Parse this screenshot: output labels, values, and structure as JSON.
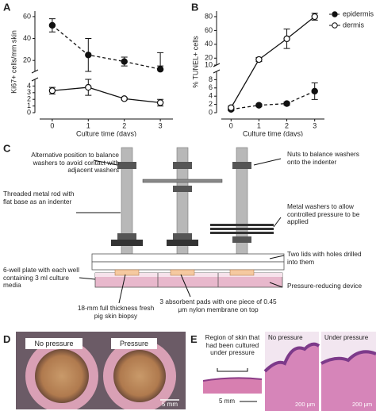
{
  "chart_data": [
    {
      "type": "line",
      "panel_label": "A",
      "x": [
        0,
        1,
        2,
        3
      ],
      "xlim": [
        -0.35,
        3.35
      ],
      "xticks": [
        0,
        1,
        2,
        3
      ],
      "xlabel": "Culture time (days)",
      "ylabel": "Ki67+ cells/mm skin",
      "y_segments": [
        {
          "ylim": [
            0,
            5
          ],
          "yticks": [
            0,
            1,
            2,
            3,
            4
          ]
        },
        {
          "ylim": [
            10,
            65
          ],
          "yticks": [
            20,
            40,
            60
          ]
        }
      ],
      "series": [
        {
          "color": "#111111",
          "marker": "filled",
          "dash": true,
          "values": [
            52,
            25,
            19,
            12
          ],
          "errors": [
            6,
            15,
            4,
            3
          ]
        },
        {
          "color": "#111111",
          "marker": "open",
          "dash": false,
          "values": [
            3.3,
            3.8,
            2.1,
            1.5
          ],
          "errors": [
            0.5,
            1.2,
            0.2,
            0.5
          ]
        }
      ]
    },
    {
      "type": "line",
      "panel_label": "B",
      "x": [
        0,
        1,
        2,
        3
      ],
      "xlim": [
        -0.35,
        3.35
      ],
      "xticks": [
        0,
        1,
        2,
        3
      ],
      "xlabel": "Culture time (days)",
      "ylabel": "% TUNEL+ cells",
      "y_segments": [
        {
          "ylim": [
            0,
            10
          ],
          "yticks": [
            0,
            2,
            4,
            6,
            8,
            10
          ]
        },
        {
          "ylim": [
            10,
            88
          ],
          "yticks": [
            20,
            40,
            60,
            80
          ]
        }
      ],
      "legend": "upper right",
      "series": [
        {
          "name": "epidermis",
          "color": "#111111",
          "marker": "filled",
          "dash": true,
          "values": [
            0.8,
            1.8,
            2.2,
            5.2
          ],
          "errors": [
            0.3,
            0.3,
            0.4,
            2
          ]
        },
        {
          "name": "dermis",
          "color": "#111111",
          "marker": "open",
          "dash": false,
          "values": [
            1.2,
            18,
            48,
            80
          ],
          "errors": [
            0.4,
            3,
            14,
            5
          ]
        }
      ]
    }
  ],
  "diagram": {
    "panel_label": "C",
    "labels": [
      "Alternative position to balance washers to avoid contact with adjacent washers",
      "Nuts to balance washers onto the indenter",
      "Threaded metal rod with flat base as an indenter",
      "Metal washers to allow controlled pressure to be applied",
      "Two lids with holes drilled into them",
      "6-well plate with each well containing 3 ml culture media",
      "Pressure-reducing device",
      "18-mm full thickness fresh pig skin biopsy",
      "3 absorbent pads with one piece of 0.45 μm nylon membrane on top"
    ]
  },
  "photo_d": {
    "panel_label": "D",
    "labels": [
      "No pressure",
      "Pressure"
    ],
    "scale_bar": "5 mm"
  },
  "photo_e": {
    "panel_label": "E",
    "region_label": "Region of skin that had been cultured under pressure",
    "scale_bar": "5 mm",
    "labels": [
      "No pressure",
      "Under pressure"
    ],
    "micro_scale_bars": [
      "200 μm",
      "200 μm"
    ]
  }
}
